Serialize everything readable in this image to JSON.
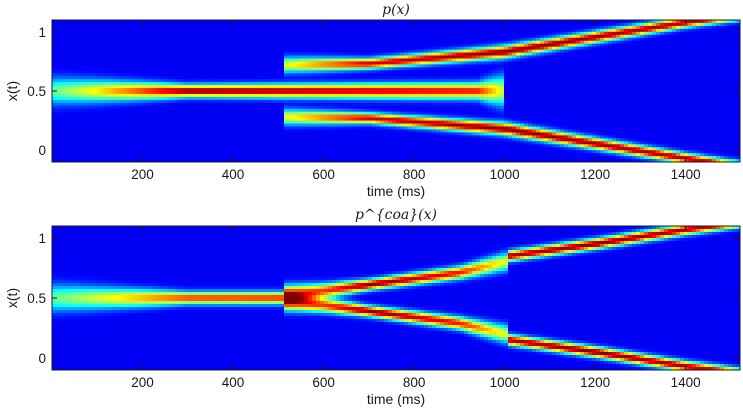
{
  "colors": {
    "colormap": "jet",
    "background": "#00008f",
    "axis": "#1a1a1a"
  },
  "chart_data": [
    {
      "type": "heatmap",
      "title": "p(x)",
      "xlabel": "time (ms)",
      "ylabel": "x(t)",
      "xlim": [
        0,
        1520
      ],
      "ylim": [
        -0.1,
        1.1
      ],
      "xticks": [
        200,
        400,
        600,
        800,
        1000,
        1200,
        1400
      ],
      "yticks": [
        0,
        0.5,
        1
      ],
      "ytick_labels": [
        "0",
        "0.5",
        "1"
      ],
      "colorscale": "jet",
      "grid": false,
      "ridges": [
        {
          "x": [
            0,
            300,
            940,
            1000
          ],
          "y": [
            0.5,
            0.5,
            0.5,
            0.5
          ],
          "width": [
            0.075,
            0.035,
            0.045,
            0.09
          ],
          "peak": [
            0.4,
            1.0,
            0.85,
            0.5
          ],
          "from": 0,
          "to": 1000
        },
        {
          "x": [
            510,
            700,
            1000,
            1400,
            1520
          ],
          "y": [
            0.72,
            0.73,
            0.83,
            1.08,
            1.14
          ],
          "width": [
            0.045,
            0.03,
            0.035,
            0.03,
            0.03
          ],
          "peak": [
            0.55,
            0.92,
            1.0,
            0.95,
            0.9
          ],
          "from": 510,
          "to": 1520
        },
        {
          "x": [
            510,
            700,
            1000,
            1400,
            1520
          ],
          "y": [
            0.28,
            0.27,
            0.18,
            -0.07,
            -0.14
          ],
          "width": [
            0.045,
            0.03,
            0.035,
            0.03,
            0.03
          ],
          "peak": [
            0.55,
            0.92,
            1.0,
            0.95,
            0.9
          ],
          "from": 510,
          "to": 1520
        }
      ]
    },
    {
      "type": "heatmap",
      "title": "p^{coa}(x)",
      "xlabel": "time (ms)",
      "ylabel": "x(t)",
      "xlim": [
        0,
        1520
      ],
      "ylim": [
        -0.1,
        1.1
      ],
      "xticks": [
        200,
        400,
        600,
        800,
        1000,
        1200,
        1400
      ],
      "yticks": [
        0,
        0.5,
        1
      ],
      "ytick_labels": [
        "0",
        "0.5",
        "1"
      ],
      "colorscale": "jet",
      "grid": false,
      "ridges": [
        {
          "x": [
            0,
            300,
            510
          ],
          "y": [
            0.5,
            0.5,
            0.5
          ],
          "width": [
            0.075,
            0.035,
            0.035
          ],
          "peak": [
            0.4,
            0.8,
            0.82
          ],
          "from": 0,
          "to": 510
        },
        {
          "x": [
            510,
            600,
            700,
            900,
            1000
          ],
          "y": [
            0.53,
            0.56,
            0.61,
            0.71,
            0.8
          ],
          "width": [
            0.05,
            0.04,
            0.03,
            0.035,
            0.05
          ],
          "peak": [
            0.78,
            0.8,
            1.0,
            0.85,
            0.55
          ],
          "from": 510,
          "to": 1010
        },
        {
          "x": [
            510,
            600,
            700,
            900,
            1000
          ],
          "y": [
            0.47,
            0.44,
            0.39,
            0.29,
            0.2
          ],
          "width": [
            0.05,
            0.04,
            0.03,
            0.035,
            0.05
          ],
          "peak": [
            0.78,
            0.8,
            1.0,
            0.85,
            0.55
          ],
          "from": 510,
          "to": 1010
        },
        {
          "x": [
            1010,
            1200,
            1400,
            1520
          ],
          "y": [
            0.85,
            0.95,
            1.07,
            1.13
          ],
          "width": [
            0.03,
            0.03,
            0.03,
            0.03
          ],
          "peak": [
            0.95,
            1.0,
            0.95,
            0.9
          ],
          "from": 1010,
          "to": 1520
        },
        {
          "x": [
            1010,
            1200,
            1400,
            1520
          ],
          "y": [
            0.15,
            0.05,
            -0.07,
            -0.13
          ],
          "width": [
            0.03,
            0.03,
            0.03,
            0.03
          ],
          "peak": [
            0.95,
            1.0,
            0.95,
            0.9
          ],
          "from": 1010,
          "to": 1520
        }
      ]
    }
  ]
}
